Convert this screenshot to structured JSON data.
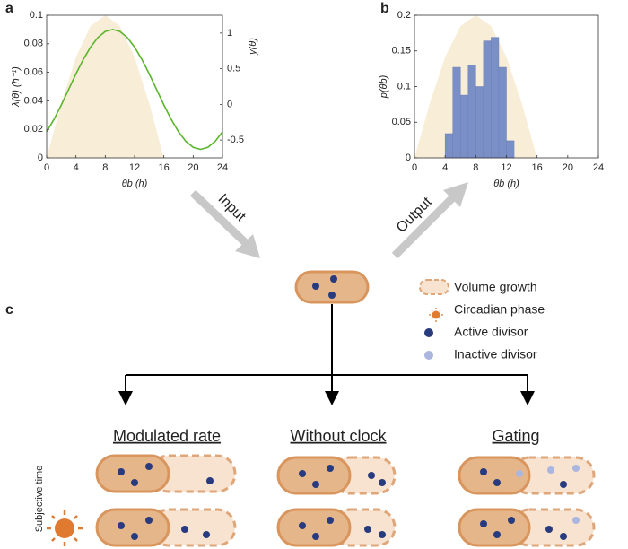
{
  "chart_data": [
    {
      "type": "line",
      "xlabel": "θb (h)",
      "ylabel": "λ(θ) (h⁻¹)",
      "y2label": "y(θ)",
      "xlim": [
        0,
        24
      ],
      "xticks": [
        0,
        4,
        8,
        12,
        16,
        20,
        24
      ],
      "ylim": [
        0,
        0.1
      ],
      "yticks": [
        0,
        0.02,
        0.04,
        0.06,
        0.08,
        0.1
      ],
      "y2lim": [
        -0.75,
        1.25
      ],
      "y2ticks": [
        -0.5,
        0,
        0.5,
        1
      ],
      "x": [
        0,
        1,
        2,
        3,
        4,
        5,
        6,
        7,
        8,
        9,
        10,
        11,
        12,
        13,
        14,
        15,
        16,
        17,
        18,
        19,
        20,
        21,
        22,
        23,
        24
      ],
      "series": [
        {
          "color": "#5ab52c",
          "values": [
            0.0183,
            0.027,
            0.0371,
            0.048,
            0.0589,
            0.069,
            0.0777,
            0.0844,
            0.0886,
            0.09,
            0.0886,
            0.0844,
            0.0777,
            0.069,
            0.0589,
            0.048,
            0.0371,
            0.027,
            0.0183,
            0.0116,
            0.0074,
            0.006,
            0.0074,
            0.0116,
            0.0183
          ]
        }
      ],
      "area": {
        "color": "#f8edd6",
        "x": [
          0,
          2,
          4,
          6,
          8,
          10,
          12,
          14,
          16
        ],
        "values": [
          0,
          0.0383,
          0.0707,
          0.0924,
          0.1,
          0.0924,
          0.0707,
          0.0383,
          0
        ]
      }
    },
    {
      "type": "histogram",
      "xlabel": "θb (h)",
      "ylabel": "p(θb)",
      "xlim": [
        0,
        24
      ],
      "xticks": [
        0,
        4,
        8,
        12,
        16,
        20,
        24
      ],
      "ylim": [
        0,
        0.2
      ],
      "yticks": [
        0,
        0.05,
        0.1,
        0.15,
        0.2
      ],
      "bins": [
        4,
        5,
        6,
        7,
        8,
        9,
        10,
        11,
        12,
        13
      ],
      "values": [
        0.034,
        0.127,
        0.088,
        0.13,
        0.1,
        0.164,
        0.169,
        0.127,
        0.024
      ],
      "color": "#7b8fc7",
      "area": {
        "color": "#f8edd6",
        "x": [
          0,
          2,
          4,
          6,
          8,
          10,
          12,
          14,
          16
        ],
        "values": [
          0,
          0.0765,
          0.1414,
          0.1848,
          0.2,
          0.1848,
          0.1414,
          0.0765,
          0
        ]
      }
    }
  ],
  "panel_labels": [
    "a",
    "b",
    "c"
  ],
  "arrows": [
    "Input",
    "Output"
  ],
  "legend": [
    "Volume growth",
    "Circadian phase",
    "Active divisor",
    "Inactive divisor"
  ],
  "headings": [
    "Modulated rate",
    "Without clock",
    "Gating"
  ],
  "row_axis_label": "Subjective time"
}
